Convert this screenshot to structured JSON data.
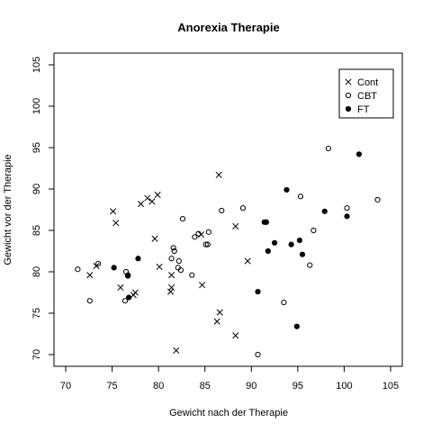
{
  "chart_data": {
    "type": "scatter",
    "title": "Anorexia Therapie",
    "xlabel": "Gewicht nach der Therapie",
    "ylabel": "Gewicht vor der Therapie",
    "xlim": [
      70,
      105
    ],
    "ylim": [
      70,
      105
    ],
    "x_ticks": [
      70,
      75,
      80,
      85,
      90,
      95,
      100,
      105
    ],
    "y_ticks": [
      70,
      75,
      80,
      85,
      90,
      95,
      100,
      105
    ],
    "grid": false,
    "legend_position": "top-right",
    "series": [
      {
        "name": "Cont",
        "marker": "x",
        "points": [
          [
            72.6,
            79.6
          ],
          [
            73.3,
            80.7
          ],
          [
            75.1,
            87.3
          ],
          [
            75.4,
            85.9
          ],
          [
            75.9,
            78.1
          ],
          [
            77.3,
            77.2
          ],
          [
            77.5,
            77.5
          ],
          [
            78.1,
            88.2
          ],
          [
            78.8,
            88.9
          ],
          [
            79.3,
            88.5
          ],
          [
            79.9,
            89.3
          ],
          [
            79.6,
            84.0
          ],
          [
            80.1,
            80.6
          ],
          [
            81.3,
            77.6
          ],
          [
            81.4,
            78.1
          ],
          [
            81.4,
            79.6
          ],
          [
            81.9,
            70.5
          ],
          [
            84.6,
            84.5
          ],
          [
            84.7,
            78.4
          ],
          [
            86.3,
            74.0
          ],
          [
            86.5,
            91.7
          ],
          [
            86.6,
            75.1
          ],
          [
            88.3,
            85.5
          ],
          [
            88.3,
            72.3
          ],
          [
            89.6,
            81.3
          ]
        ]
      },
      {
        "name": "CBT",
        "marker": "open-circle",
        "points": [
          [
            71.3,
            80.3
          ],
          [
            72.6,
            76.5
          ],
          [
            73.5,
            81.0
          ],
          [
            76.5,
            80.0
          ],
          [
            76.4,
            76.5
          ],
          [
            76.7,
            79.5
          ],
          [
            81.4,
            81.6
          ],
          [
            81.6,
            82.9
          ],
          [
            81.7,
            82.5
          ],
          [
            82.1,
            80.5
          ],
          [
            82.2,
            81.3
          ],
          [
            82.4,
            80.2
          ],
          [
            82.6,
            86.4
          ],
          [
            83.6,
            79.6
          ],
          [
            83.9,
            84.2
          ],
          [
            84.3,
            84.6
          ],
          [
            85.1,
            83.3
          ],
          [
            85.3,
            83.3
          ],
          [
            85.4,
            84.8
          ],
          [
            86.8,
            87.4
          ],
          [
            89.1,
            87.7
          ],
          [
            90.7,
            70.0
          ],
          [
            91.6,
            86.0
          ],
          [
            93.5,
            76.3
          ],
          [
            95.3,
            89.1
          ],
          [
            96.3,
            80.8
          ],
          [
            96.7,
            85.0
          ],
          [
            98.3,
            94.9
          ],
          [
            100.3,
            87.7
          ],
          [
            103.6,
            88.7
          ]
        ]
      },
      {
        "name": "FT",
        "marker": "filled-circle",
        "points": [
          [
            75.2,
            80.5
          ],
          [
            76.7,
            79.6
          ],
          [
            76.8,
            76.9
          ],
          [
            77.8,
            81.6
          ],
          [
            90.7,
            77.6
          ],
          [
            91.4,
            86.0
          ],
          [
            91.6,
            86.0
          ],
          [
            91.8,
            82.5
          ],
          [
            92.5,
            83.5
          ],
          [
            93.8,
            89.9
          ],
          [
            94.3,
            83.3
          ],
          [
            94.9,
            73.4
          ],
          [
            95.2,
            83.8
          ],
          [
            95.5,
            82.1
          ],
          [
            97.9,
            87.3
          ],
          [
            100.3,
            86.7
          ],
          [
            101.6,
            94.2
          ]
        ]
      }
    ]
  }
}
